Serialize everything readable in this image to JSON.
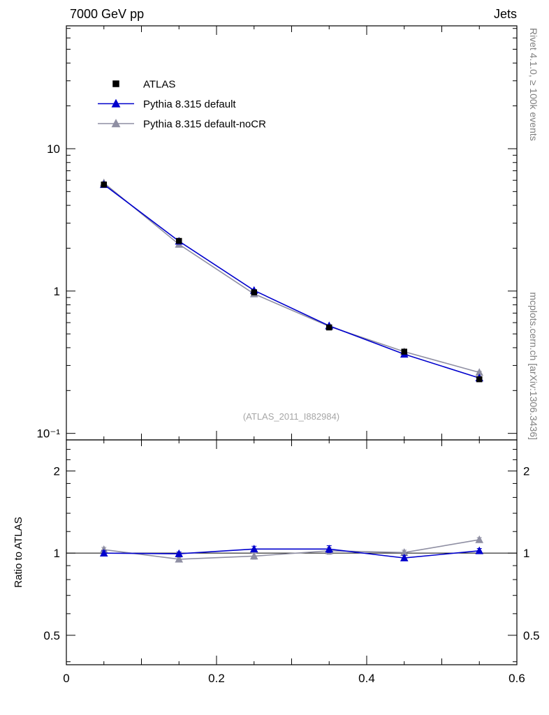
{
  "header": {
    "left": "7000 GeV pp",
    "right": "Jets"
  },
  "sidebar_right": {
    "top": "Rivet 4.1.0, ≥ 100k events",
    "bottom": "mcplots.cern.ch [arXiv:1306.3436]"
  },
  "watermark": "(ATLAS_2011_I882984)",
  "chart_data": {
    "type": "line",
    "x": [
      0.05,
      0.15,
      0.25,
      0.35,
      0.45,
      0.55
    ],
    "xlim": [
      0,
      0.6
    ],
    "xticks": [
      0,
      0.2,
      0.4,
      0.6
    ],
    "xtick_labels": [
      "0",
      "0.2",
      "0.4",
      "0.6"
    ],
    "main": {
      "yscale": "log",
      "ylim": [
        0.09,
        73
      ],
      "yticks": [
        0.1,
        1,
        10
      ],
      "ytick_labels": [
        "10⁻¹",
        "1",
        "10"
      ],
      "series": [
        {
          "name": "ATLAS",
          "marker": "square",
          "color": "#000000",
          "line": false,
          "values": [
            5.6,
            2.25,
            0.98,
            0.555,
            0.375,
            0.24
          ],
          "errors": [
            0.12,
            0.05,
            0.025,
            0.015,
            0.012,
            0.008
          ]
        },
        {
          "name": "Pythia 8.315 default",
          "marker": "triangle",
          "color": "#0000cd",
          "line": true,
          "values": [
            5.6,
            2.24,
            1.01,
            0.57,
            0.36,
            0.245
          ],
          "errors": [
            0.05,
            0.02,
            0.012,
            0.008,
            0.006,
            0.005
          ]
        },
        {
          "name": "Pythia 8.315 default-noCR",
          "marker": "triangle",
          "color": "#8f8fa3",
          "line": true,
          "values": [
            5.75,
            2.13,
            0.955,
            0.565,
            0.375,
            0.268
          ],
          "errors": [
            0.05,
            0.02,
            0.012,
            0.008,
            0.006,
            0.005
          ]
        }
      ]
    },
    "ratio": {
      "ylabel": "Ratio to ATLAS",
      "yscale": "log",
      "ylim": [
        0.39,
        2.6
      ],
      "yticks": [
        0.5,
        1,
        2
      ],
      "ytick_labels": [
        "0.5",
        "1",
        "2"
      ],
      "minor_ticks": [
        0.4,
        0.6,
        0.7,
        0.8,
        0.9,
        1.2,
        1.4,
        1.6,
        1.8,
        2.2,
        2.4
      ],
      "reference_line": 1,
      "series": [
        {
          "name": "Pythia 8.315 default",
          "marker": "triangle",
          "color": "#0000cd",
          "line": true,
          "values": [
            1.0,
            0.995,
            1.035,
            1.035,
            0.96,
            1.02
          ],
          "errors": [
            0.02,
            0.015,
            0.025,
            0.03,
            0.02,
            0.02
          ]
        },
        {
          "name": "Pythia 8.315 default-noCR",
          "marker": "triangle",
          "color": "#8f8fa3",
          "line": true,
          "values": [
            1.03,
            0.95,
            0.975,
            1.02,
            1.005,
            1.12
          ],
          "errors": [
            0.02,
            0.015,
            0.025,
            0.03,
            0.02,
            0.02
          ]
        }
      ]
    },
    "legend": [
      {
        "label": "ATLAS",
        "marker": "square",
        "color": "#000000",
        "line": false
      },
      {
        "label": "Pythia 8.315 default",
        "marker": "triangle",
        "color": "#0000cd",
        "line": true
      },
      {
        "label": "Pythia 8.315 default-noCR",
        "marker": "triangle",
        "color": "#8f8fa3",
        "line": true
      }
    ]
  }
}
